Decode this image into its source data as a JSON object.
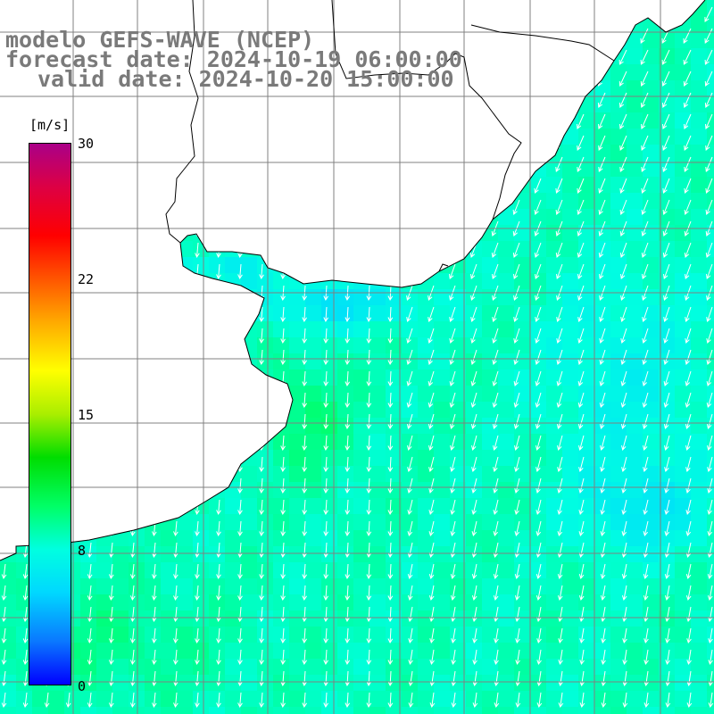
{
  "title": {
    "line1": "modelo GEFS-WAVE (NCEP)",
    "line2": "forecast date: 2024-10-19 06:00:00",
    "line3": "valid date: 2024-10-20 15:00:00"
  },
  "colorbar": {
    "unit": "[m/s]",
    "ticks": [
      "30",
      "22",
      "15",
      "8",
      "0"
    ],
    "tick_values": [
      30,
      22,
      15,
      8,
      0
    ],
    "min": 0,
    "max": 30,
    "colors": [
      "#0000ff",
      "#0a78ff",
      "#00d8ff",
      "#00ffe0",
      "#00ff66",
      "#00dd00",
      "#aaee00",
      "#ffff00",
      "#ffaa00",
      "#ff5500",
      "#ff0000",
      "#dd0044",
      "#aa0088"
    ]
  },
  "map": {
    "field": "10 m wind speed",
    "arrow_color": "#ffffff",
    "land_color": "#ffffff",
    "grid_color": "#808080",
    "coast_color": "#000000",
    "wind_direction": "southward"
  }
}
